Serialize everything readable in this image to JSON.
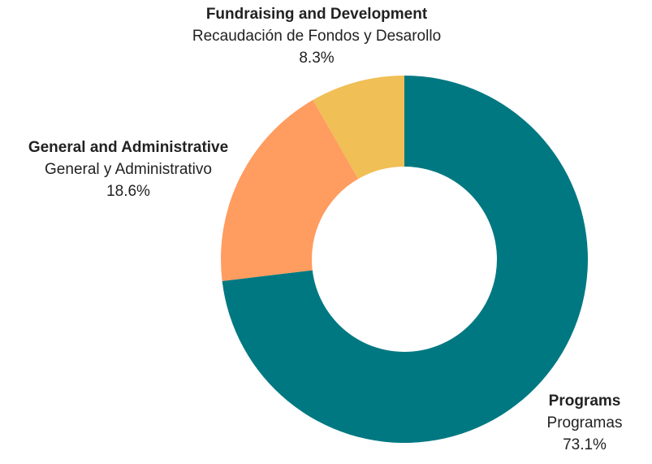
{
  "chart_data": {
    "type": "pie",
    "donut": true,
    "categories": [
      "Programs",
      "General and Administrative",
      "Fundraising and Development"
    ],
    "values": [
      73.1,
      18.6,
      8.3
    ],
    "colors": [
      "#007882",
      "#FF9C5F",
      "#F0BF55"
    ],
    "labels": [
      {
        "en": "Programs",
        "es": "Programas",
        "pct": "73.1%"
      },
      {
        "en": "General and Administrative",
        "es": "General y Administrativo",
        "pct": "18.6%"
      },
      {
        "en": "Fundraising and Development",
        "es": "Recaudación de Fondos y Desarollo",
        "pct": "8.3%"
      }
    ],
    "title": ""
  }
}
